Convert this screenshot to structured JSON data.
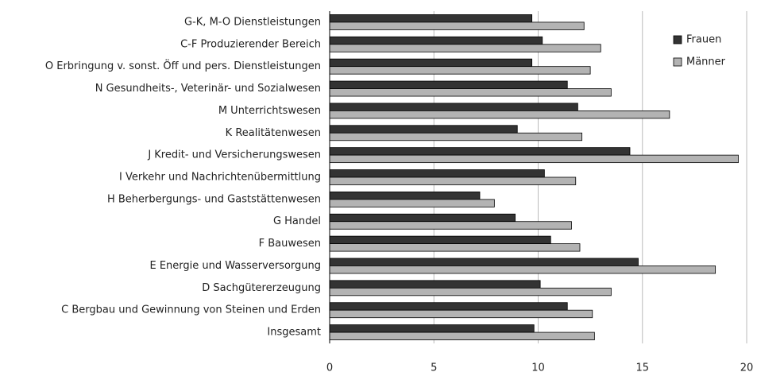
{
  "chart_data": {
    "type": "hbar",
    "categories": [
      "G-K, M-O Dienstleistungen",
      "C-F Produzierender Bereich",
      "O Erbringung v. sonst. Öff und pers. Dienstleistungen",
      "N Gesundheits-, Veterinär- und Sozialwesen",
      "M Unterrichtswesen",
      "K Realitätenwesen",
      "J Kredit- und Versicherungswesen",
      "I Verkehr und Nachrichtenübermittlung",
      "H Beherbergungs- und Gaststättenwesen",
      "G Handel",
      "F Bauwesen",
      "E Energie und Wasserversorgung",
      "D Sachgütererzeugung",
      "C Bergbau und Gewinnung von Steinen und Erden",
      "Insgesamt"
    ],
    "series": [
      {
        "name": "Frauen",
        "color": "#333333",
        "values": [
          9.7,
          10.2,
          9.7,
          11.4,
          11.9,
          9.0,
          14.4,
          10.3,
          7.2,
          8.9,
          10.6,
          14.8,
          10.1,
          11.4,
          9.8
        ]
      },
      {
        "name": "Männer",
        "color": "#b3b3b3",
        "values": [
          12.2,
          13.0,
          12.5,
          13.5,
          16.3,
          12.1,
          19.6,
          11.8,
          7.9,
          11.6,
          12.0,
          18.5,
          13.5,
          12.6,
          12.7
        ]
      }
    ],
    "xlim": [
      0,
      20
    ],
    "xticks": [
      0,
      5,
      10,
      15,
      20
    ],
    "grid": true,
    "legend": "top-right"
  }
}
